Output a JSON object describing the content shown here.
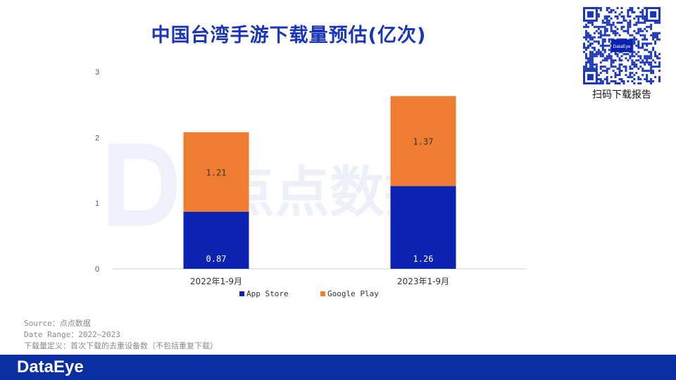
{
  "title": "中国台湾手游下载量预估(亿次)",
  "qr_caption": "扫码下载报告",
  "qr_logo_text": "DataEye",
  "watermark_text": "点点数据",
  "brand": "DataEye",
  "notes": {
    "source": "Source：点点数据",
    "date_range": "Date Range：2022~2023",
    "definition": "下载量定义：首次下载的去重设备数（不包括重复下载）"
  },
  "colors": {
    "app_store": "#0c22b0",
    "google_play": "#ef7d31",
    "title": "#1a35b5",
    "footer": "#0a2fa0"
  },
  "chart_data": {
    "type": "bar",
    "stacked": true,
    "categories": [
      "2022年1-9月",
      "2023年1-9月"
    ],
    "series": [
      {
        "name": "App Store",
        "values": [
          0.87,
          1.26
        ],
        "labels": [
          "0.87",
          "1.26"
        ]
      },
      {
        "name": "Google Play",
        "values": [
          1.21,
          1.37
        ],
        "labels": [
          "1.21",
          "1.37"
        ]
      }
    ],
    "yticks": [
      "0",
      "1",
      "2",
      "3"
    ],
    "ylim": [
      0,
      3
    ],
    "legend_position": "bottom",
    "grid": false
  }
}
